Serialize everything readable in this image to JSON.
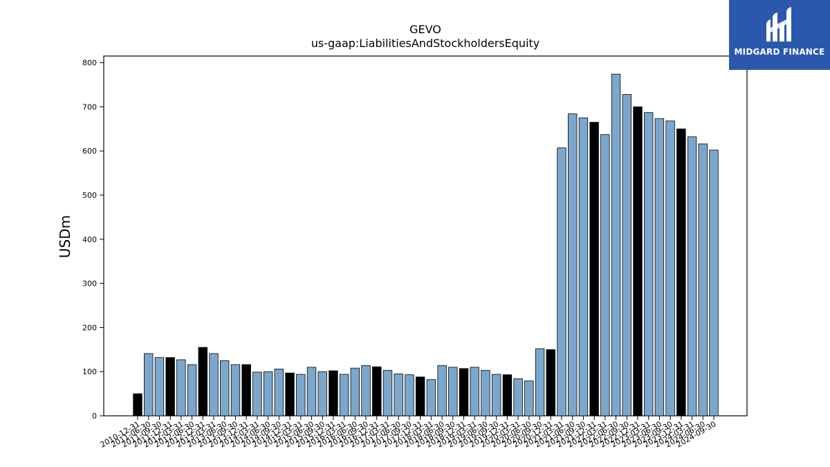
{
  "logo": {
    "text": "MIDGARD FINANCE",
    "icon": "midgard-logo-icon",
    "background": "#2b58ad"
  },
  "chart_data": {
    "type": "bar",
    "title": "GEVO",
    "subtitle": "us-gaap:LiabilitiesAndStockholdersEquity",
    "ylabel": "USDm",
    "xlabel": "",
    "ylim": [
      0,
      815
    ],
    "yticks": [
      0,
      100,
      200,
      300,
      400,
      500,
      600,
      700,
      800
    ],
    "grid": false,
    "colors": {
      "quarter": "#7ba7cc",
      "annual": "#000000",
      "edge": "#000000"
    },
    "categories": [
      "2010-12-31",
      "2011-06-30",
      "2011-09-30",
      "2011-12-31",
      "2012-03-31",
      "2012-06-30",
      "2012-12-31",
      "2013-03-31",
      "2013-06-30",
      "2013-09-30",
      "2013-12-31",
      "2014-03-31",
      "2014-06-30",
      "2014-09-30",
      "2014-12-31",
      "2015-03-31",
      "2015-06-30",
      "2015-09-30",
      "2015-12-31",
      "2016-03-31",
      "2016-06-30",
      "2016-09-30",
      "2016-12-31",
      "2017-03-31",
      "2017-06-30",
      "2017-09-30",
      "2017-12-31",
      "2018-03-31",
      "2018-06-30",
      "2018-09-30",
      "2018-12-31",
      "2019-03-31",
      "2019-06-30",
      "2019-09-30",
      "2019-12-31",
      "2020-03-31",
      "2020-06-30",
      "2020-09-30",
      "2020-12-31",
      "2021-03-31",
      "2021-06-30",
      "2021-09-30",
      "2021-12-31",
      "2022-03-31",
      "2022-06-30",
      "2022-09-30",
      "2022-12-31",
      "2023-03-31",
      "2023-06-30",
      "2023-09-30",
      "2023-12-31",
      "2024-03-31",
      "2024-06-30",
      "2024-09-30"
    ],
    "values": [
      50,
      141,
      132,
      132,
      127,
      116,
      155,
      141,
      125,
      116,
      116,
      99,
      100,
      106,
      97,
      94,
      110,
      100,
      102,
      94,
      108,
      114,
      111,
      103,
      95,
      93,
      88,
      82,
      114,
      110,
      107,
      110,
      103,
      94,
      93,
      84,
      79,
      152,
      150,
      607,
      684,
      675,
      665,
      637,
      774,
      728,
      700,
      687,
      673,
      668,
      650,
      632,
      616,
      602
    ],
    "annual": [
      true,
      false,
      false,
      true,
      false,
      false,
      true,
      false,
      false,
      false,
      true,
      false,
      false,
      false,
      true,
      false,
      false,
      false,
      true,
      false,
      false,
      false,
      true,
      false,
      false,
      false,
      true,
      false,
      false,
      false,
      true,
      false,
      false,
      false,
      true,
      false,
      false,
      false,
      true,
      false,
      false,
      false,
      true,
      false,
      false,
      false,
      true,
      false,
      false,
      false,
      true,
      false,
      false,
      false
    ]
  }
}
